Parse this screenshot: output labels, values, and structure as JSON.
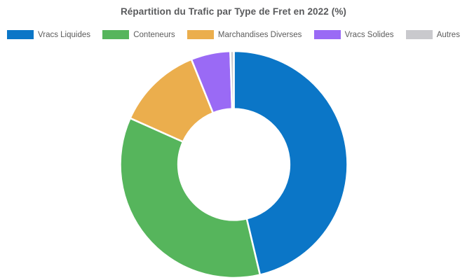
{
  "page": {
    "background_color": "#ffffff",
    "title_color": "#595a5c",
    "legend_text_color": "#5c5c5c"
  },
  "chart_data": {
    "type": "pie",
    "subtype": "donut",
    "title": "Répartition du Trafic par Type de Fret en 2022 (%)",
    "unit": "%",
    "labels": [
      "Vracs Liquides",
      "Conteneurs",
      "Marchandises Diverses",
      "Vracs Solides",
      "Autres"
    ],
    "values": [
      46.3,
      35.4,
      12.2,
      5.6,
      0.5
    ],
    "colors": [
      "#0b76c7",
      "#56b55c",
      "#ebae4d",
      "#9a6af5",
      "#c9c9cd"
    ],
    "start_angle_deg": 0,
    "direction": "clockwise",
    "inner_radius_ratio": 0.49,
    "wedge_edge_color": "#ffffff",
    "legend_position": "top",
    "data_labels_shown": false
  }
}
